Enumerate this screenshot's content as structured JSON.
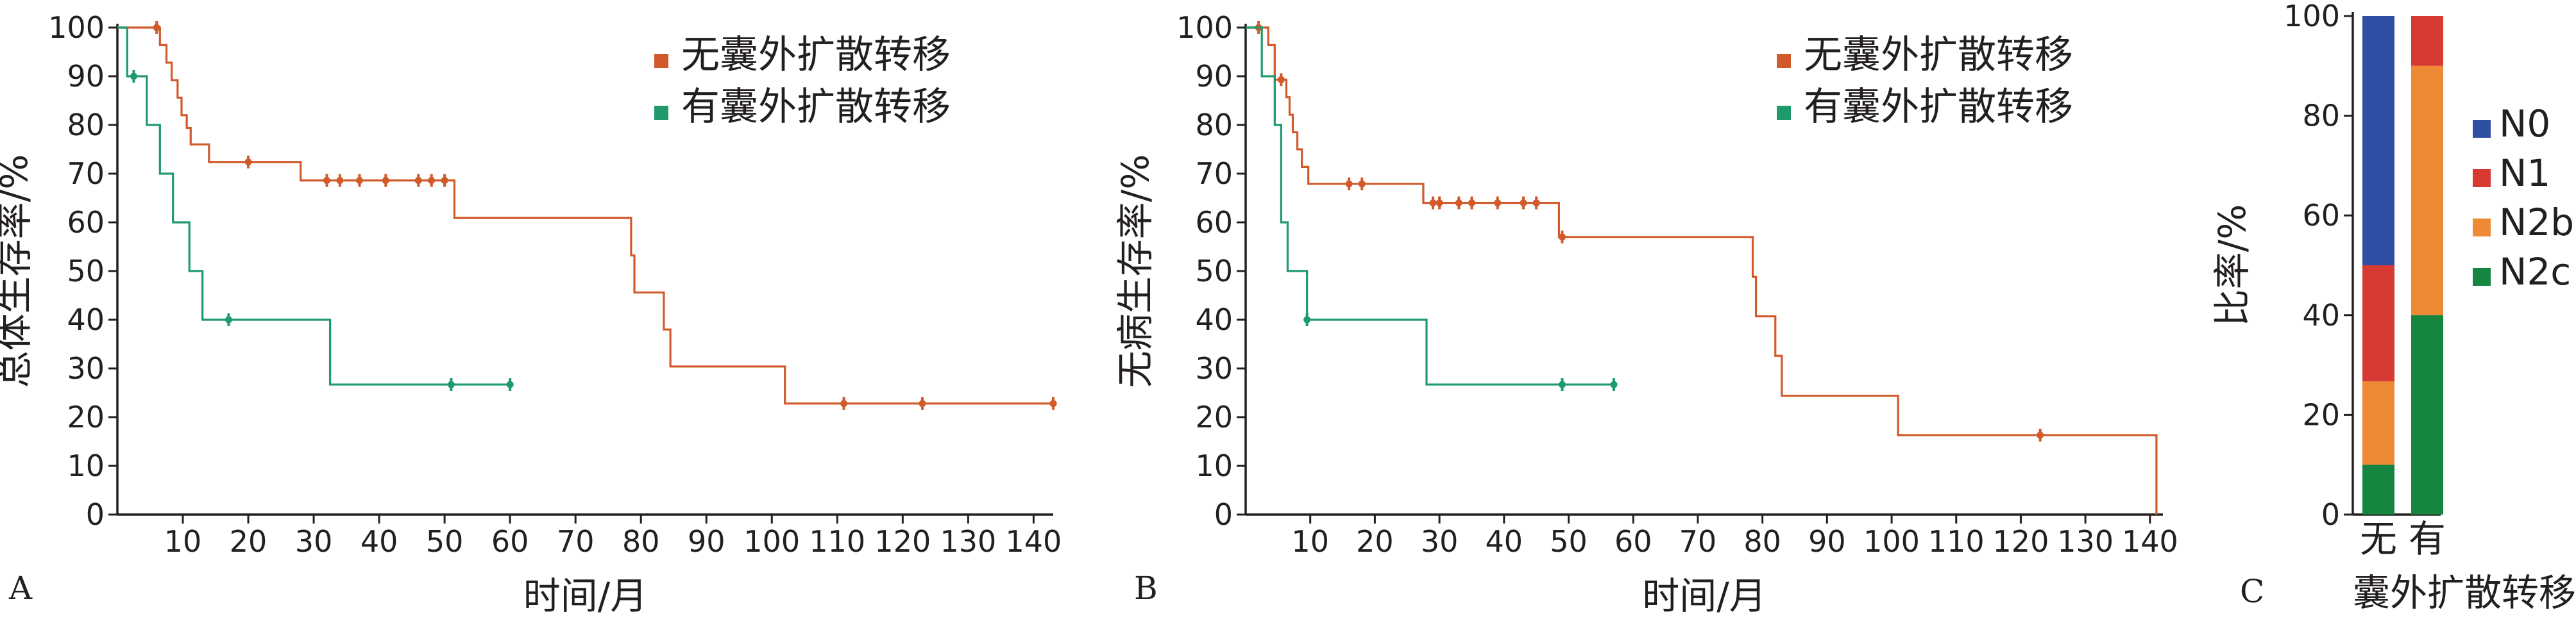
{
  "colors": {
    "no_ece": "#d1592a",
    "ece": "#1e9a6c",
    "axis": "#231f20",
    "N0": "#2e4fa3",
    "N1": "#d63a33",
    "N2b": "#ef8a34",
    "N2c": "#15853f"
  },
  "chart_data": [
    {
      "panel": "A",
      "type": "line",
      "subtype": "kaplan-meier",
      "xlabel": "时间/月",
      "ylabel": "总体生存率/%",
      "xlim": [
        0,
        143
      ],
      "ylim": [
        0,
        100
      ],
      "xticks": [
        10,
        20,
        30,
        40,
        50,
        60,
        70,
        80,
        90,
        100,
        110,
        120,
        130,
        140
      ],
      "yticks": [
        0,
        10,
        20,
        30,
        40,
        50,
        60,
        70,
        80,
        90,
        100
      ],
      "legend": [
        "无囊外扩散转移",
        "有囊外扩散转移"
      ],
      "series": [
        {
          "name": "无囊外扩散转移",
          "color_key": "no_ece",
          "steps": [
            [
              0,
              100
            ],
            [
              6.5,
              96.4
            ],
            [
              7.5,
              92.8
            ],
            [
              8.3,
              89.2
            ],
            [
              9.2,
              85.6
            ],
            [
              9.8,
              82.0
            ],
            [
              10.6,
              79.4
            ],
            [
              11.2,
              76.0
            ],
            [
              14,
              72.4
            ],
            [
              28,
              68.6
            ],
            [
              51.5,
              60.9
            ],
            [
              78.5,
              53.2
            ],
            [
              79,
              45.6
            ],
            [
              83.5,
              38.0
            ],
            [
              84.5,
              30.4
            ],
            [
              102,
              22.8
            ],
            [
              143,
              22.8
            ]
          ],
          "censored": [
            [
              6,
              100
            ],
            [
              20,
              72.4
            ],
            [
              32,
              68.6
            ],
            [
              34,
              68.6
            ],
            [
              37,
              68.6
            ],
            [
              41,
              68.6
            ],
            [
              46,
              68.6
            ],
            [
              48,
              68.6
            ],
            [
              50,
              68.6
            ],
            [
              111,
              22.8
            ],
            [
              123,
              22.8
            ],
            [
              143,
              22.8
            ]
          ]
        },
        {
          "name": "有囊外扩散转移",
          "color_key": "ece",
          "steps": [
            [
              0,
              100
            ],
            [
              1.5,
              90
            ],
            [
              4.5,
              80
            ],
            [
              6.5,
              70
            ],
            [
              8.5,
              60
            ],
            [
              11,
              50
            ],
            [
              13,
              40
            ],
            [
              32.5,
              26.7
            ],
            [
              60,
              26.7
            ]
          ],
          "censored": [
            [
              2.5,
              90
            ],
            [
              17,
              40
            ],
            [
              51,
              26.7
            ],
            [
              60,
              26.7
            ]
          ]
        }
      ]
    },
    {
      "panel": "B",
      "type": "line",
      "subtype": "kaplan-meier",
      "xlabel": "时间/月",
      "ylabel": "无病生存率/%",
      "xlim": [
        0,
        142
      ],
      "ylim": [
        0,
        100
      ],
      "xticks": [
        10,
        20,
        30,
        40,
        50,
        60,
        70,
        80,
        90,
        100,
        110,
        120,
        130,
        140
      ],
      "yticks": [
        0,
        10,
        20,
        30,
        40,
        50,
        60,
        70,
        80,
        90,
        100
      ],
      "legend": [
        "无囊外扩散转移",
        "有囊外扩散转移"
      ],
      "series": [
        {
          "name": "无囊外扩散转移",
          "color_key": "no_ece",
          "steps": [
            [
              0,
              100
            ],
            [
              3.5,
              96.4
            ],
            [
              4.5,
              89.3
            ],
            [
              6.3,
              85.7
            ],
            [
              6.8,
              82.1
            ],
            [
              7.3,
              78.5
            ],
            [
              8,
              75.0
            ],
            [
              8.7,
              71.4
            ],
            [
              9.7,
              67.9
            ],
            [
              27.5,
              64.0
            ],
            [
              48.5,
              57.0
            ],
            [
              78.5,
              48.8
            ],
            [
              79,
              40.7
            ],
            [
              82,
              32.6
            ],
            [
              83,
              24.4
            ],
            [
              101,
              16.3
            ],
            [
              141,
              16.3
            ],
            [
              141,
              0
            ]
          ],
          "censored": [
            [
              2,
              100
            ],
            [
              5.5,
              89.3
            ],
            [
              16,
              67.9
            ],
            [
              18,
              67.9
            ],
            [
              29,
              64.0
            ],
            [
              30,
              64.0
            ],
            [
              33,
              64.0
            ],
            [
              35,
              64.0
            ],
            [
              39,
              64.0
            ],
            [
              43,
              64.0
            ],
            [
              45,
              64.0
            ],
            [
              49,
              57.0
            ],
            [
              123,
              16.3
            ]
          ]
        },
        {
          "name": "有囊外扩散转移",
          "color_key": "ece",
          "steps": [
            [
              0,
              100
            ],
            [
              2.5,
              90
            ],
            [
              4.5,
              80
            ],
            [
              5.5,
              60
            ],
            [
              6.5,
              50
            ],
            [
              9.5,
              40
            ],
            [
              28,
              26.7
            ],
            [
              57,
              26.7
            ]
          ],
          "censored": [
            [
              9.5,
              40
            ],
            [
              49,
              26.7
            ],
            [
              57,
              26.7
            ]
          ]
        }
      ]
    },
    {
      "panel": "C",
      "type": "bar",
      "subtype": "stacked-percent",
      "xlabel": "囊外扩散转移",
      "ylabel": "比率/%",
      "ylim": [
        0,
        100
      ],
      "yticks": [
        0,
        20,
        40,
        60,
        80,
        100
      ],
      "categories": [
        "无",
        "有"
      ],
      "series": [
        {
          "name": "N2c",
          "color_key": "N2c",
          "values": [
            10,
            40
          ]
        },
        {
          "name": "N2b",
          "color_key": "N2b",
          "values": [
            16.7,
            50
          ]
        },
        {
          "name": "N1",
          "color_key": "N1",
          "values": [
            23.3,
            10
          ]
        },
        {
          "name": "N0",
          "color_key": "N0",
          "values": [
            50,
            0
          ]
        }
      ],
      "legend_order": [
        "N0",
        "N1",
        "N2b",
        "N2c"
      ]
    }
  ]
}
